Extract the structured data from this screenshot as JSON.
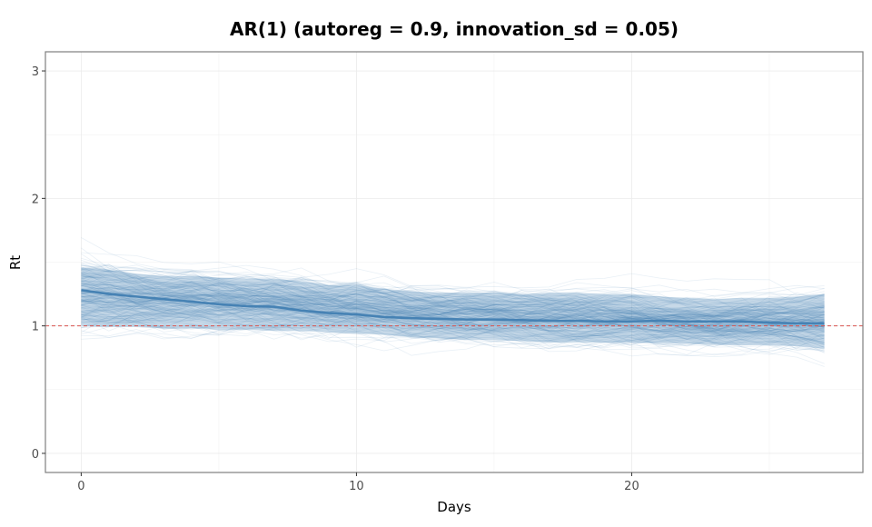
{
  "chart_data": {
    "type": "line",
    "title": "AR(1) (autoreg = 0.9, innovation_sd = 0.05)",
    "xlabel": "Days",
    "ylabel": "Rt",
    "xlim": [
      -1.3,
      28.4
    ],
    "ylim": [
      -0.15,
      3.15
    ],
    "x_ticks": [
      0,
      10,
      20
    ],
    "x_tick_labels": [
      "0",
      "10",
      "20"
    ],
    "y_ticks": [
      0,
      1,
      2,
      3
    ],
    "y_tick_labels": [
      "0",
      "1",
      "2",
      "3"
    ],
    "grid": true,
    "reference_line": {
      "y": 1,
      "style": "dashed",
      "color": "#d9534f"
    },
    "x": [
      0,
      1,
      2,
      3,
      4,
      5,
      6,
      7,
      8,
      9,
      10,
      11,
      12,
      13,
      14,
      15,
      16,
      17,
      18,
      19,
      20,
      21,
      22,
      23,
      24,
      25,
      26,
      27
    ],
    "series": [
      {
        "name": "median",
        "color": "#4682b4",
        "values": [
          1.28,
          1.25,
          1.23,
          1.21,
          1.19,
          1.17,
          1.155,
          1.15,
          1.12,
          1.1,
          1.09,
          1.07,
          1.06,
          1.055,
          1.05,
          1.05,
          1.045,
          1.04,
          1.04,
          1.035,
          1.035,
          1.04,
          1.035,
          1.035,
          1.035,
          1.025,
          1.02,
          1.02
        ]
      },
      {
        "name": "interval_upper",
        "color": "#4682b4",
        "values": [
          1.46,
          1.44,
          1.41,
          1.39,
          1.39,
          1.38,
          1.37,
          1.37,
          1.35,
          1.32,
          1.32,
          1.29,
          1.27,
          1.26,
          1.26,
          1.26,
          1.25,
          1.26,
          1.26,
          1.25,
          1.25,
          1.23,
          1.22,
          1.21,
          1.22,
          1.22,
          1.23,
          1.25
        ]
      },
      {
        "name": "interval_lower",
        "color": "#4682b4",
        "values": [
          1.0,
          0.99,
          0.99,
          0.98,
          0.98,
          0.97,
          0.97,
          0.96,
          0.96,
          0.95,
          0.94,
          0.93,
          0.91,
          0.9,
          0.89,
          0.89,
          0.88,
          0.87,
          0.87,
          0.87,
          0.87,
          0.86,
          0.86,
          0.85,
          0.85,
          0.85,
          0.84,
          0.82
        ]
      }
    ],
    "sample_paths": {
      "count": 200,
      "autoreg": 0.9,
      "innovation_sd": 0.05,
      "color": "#4682b4"
    }
  }
}
